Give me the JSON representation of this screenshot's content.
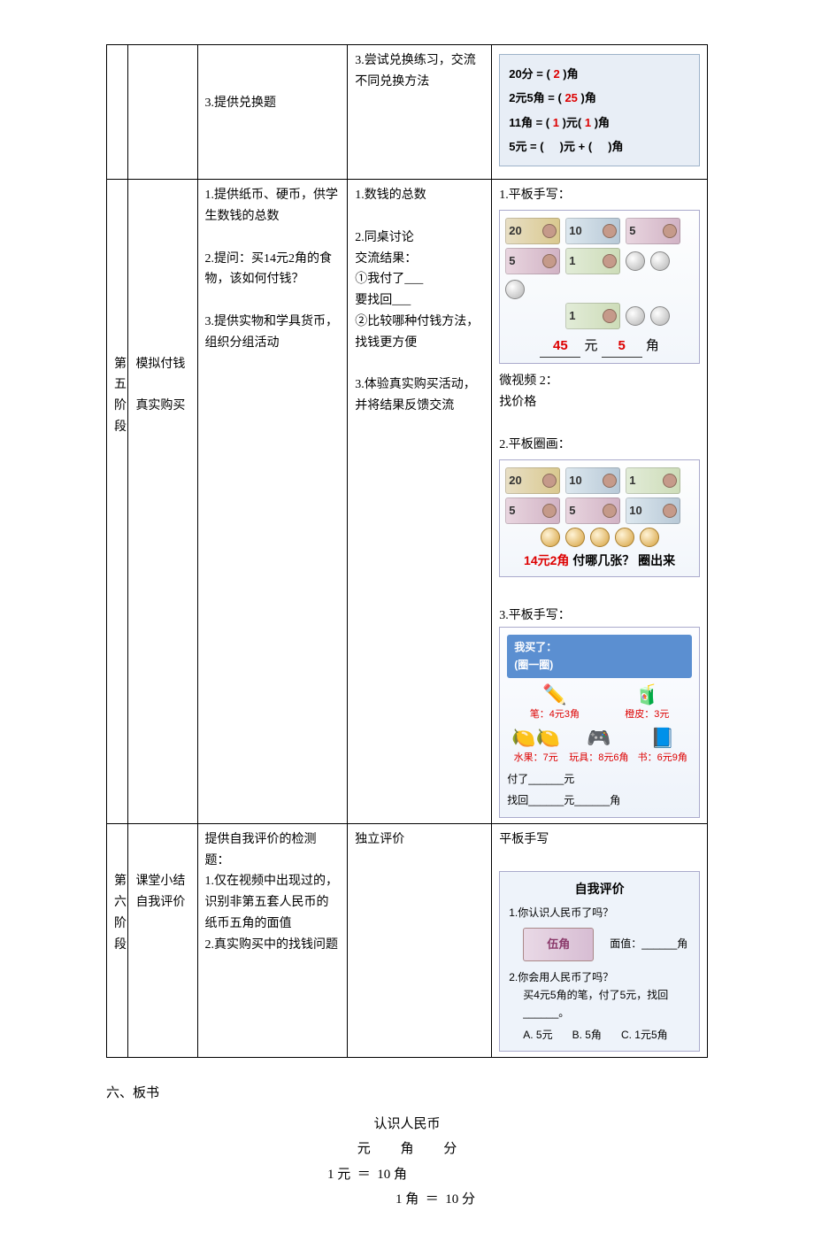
{
  "table": {
    "row4": {
      "teacher": "3.提供兑换题",
      "student": "3.尝试兑换练习，交流不同兑换方法",
      "ex": {
        "l1_pre": "20分 = ( ",
        "l1_val": "2",
        "l1_post": " )角",
        "l2_pre": "2元5角 = ( ",
        "l2_val": "25",
        "l2_post": " )角",
        "l3_pre": "11角 = ( ",
        "l3_v1": "1",
        "l3_mid": " )元( ",
        "l3_v2": "1",
        "l3_post": " )角",
        "l4_pre": "5元 = ( ",
        "l4_mid": " )元 + ( ",
        "l4_post": " )角"
      }
    },
    "row5": {
      "stage": "第五阶段",
      "title1": "模拟付钱",
      "title2": "真实购买",
      "teacher": {
        "p1": "1.提供纸币、硬币，供学生数钱的总数",
        "p2": "2.提问：买14元2角的食物，该如何付钱？",
        "p3": "3.提供实物和学具货币，组织分组活动"
      },
      "student": {
        "p1": "1.数钱的总数",
        "p2": "2.同桌讨论",
        "p3": "交流结果：",
        "p4": "①我付了___",
        "p5": "要找回___",
        "p6": "②比较哪种付钱方法，找钱更方便",
        "p7": "3.体验真实购买活动，并将结果反馈交流"
      },
      "media": {
        "h1": "1.平板手写：",
        "total_yuan": "45",
        "total_jiao": "5",
        "yuan_lbl": "元",
        "jiao_lbl": "角",
        "micro_l1": "微视频 2：",
        "micro_l2": "找价格",
        "h2": "2.平板圈画：",
        "circle_caption_red": "14元2角 ",
        "circle_caption_black": "付哪几张？  圈出来",
        "h3": "3.平板手写：",
        "shop_hdr1": "我买了：",
        "shop_hdr2": "(圈一圈)",
        "items": {
          "pen": {
            "glyph": "✏️",
            "label": "笔：4元3角"
          },
          "drink": {
            "glyph": "🧃",
            "label": "橙皮：3元"
          },
          "fruit": {
            "glyph": "🍋🍋",
            "label": "水果：7元"
          },
          "toy": {
            "glyph": "🎮",
            "label": "玩具：8元6角"
          },
          "book": {
            "glyph": "📘",
            "label": "书：6元9角"
          }
        },
        "pay_line": "付了______元",
        "change_line": "找回______元______角"
      }
    },
    "row6": {
      "stage": "第六阶段",
      "title1": "课堂小结",
      "title2": "自我评价",
      "teacher": "提供自我评价的检测题：\n1.仅在视频中出现过的，识别非第五套人民币的纸币五角的面值\n2.真实购买中的找钱问题",
      "student": "独立评价",
      "media": {
        "h1": "平板手写",
        "title": "自我评价",
        "q1": "1.你认识人民币了吗？",
        "bill_text": "伍角",
        "face_label": "面值：______角",
        "q2": "2.你会用人民币了吗？",
        "q2stem": "买4元5角的笔，付了5元，找回______。",
        "optA": "A.  5元",
        "optB": "B.  5角",
        "optC": "C.  1元5角"
      }
    }
  },
  "board": {
    "hdr": "六、板书",
    "title": "认识人民币",
    "units": "元         角         分",
    "eq1": "1 元  ＝  10 角",
    "eq2": "1 角  ＝  10 分"
  },
  "bills": {
    "d20": "20",
    "d10": "10",
    "d5": "5",
    "d1": "1"
  }
}
